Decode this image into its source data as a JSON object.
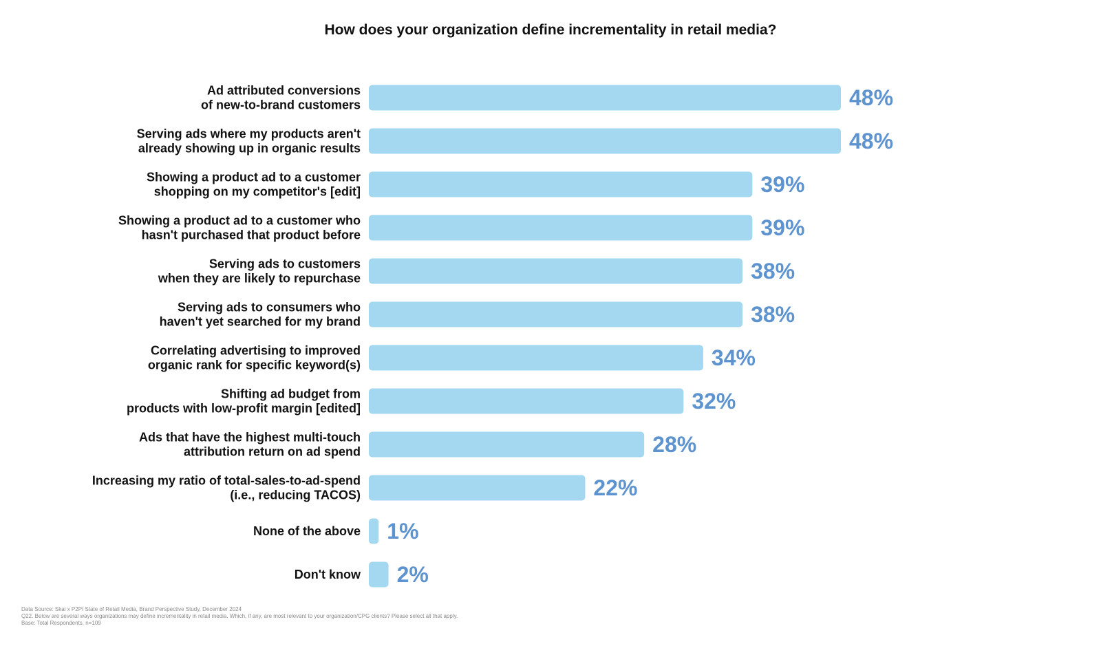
{
  "chart_data": {
    "type": "bar",
    "orientation": "horizontal",
    "title": "How does your organization define incrementality in retail media?",
    "categories": [
      [
        "Ad attributed conversions",
        "of new-to-brand customers"
      ],
      [
        "Serving ads where my products aren't",
        "already showing up in organic results"
      ],
      [
        "Showing a product ad to a customer",
        "shopping on my competitor's [edit]"
      ],
      [
        "Showing a product ad to a customer who",
        "hasn't purchased that product before"
      ],
      [
        "Serving ads to customers",
        "when they are likely to repurchase"
      ],
      [
        "Serving ads to consumers who",
        "haven't yet searched for my brand"
      ],
      [
        "Correlating advertising to improved",
        "organic rank for specific keyword(s)"
      ],
      [
        "Shifting ad budget from",
        "products with low-profit margin [edited]"
      ],
      [
        "Ads that have the highest multi-touch",
        "attribution return on ad spend"
      ],
      [
        "Increasing my ratio of total-sales-to-ad-spend",
        "(i.e., reducing TACOS)"
      ],
      [
        "None of the above"
      ],
      [
        "Don't know"
      ]
    ],
    "values": [
      48,
      48,
      39,
      39,
      38,
      38,
      34,
      32,
      28,
      22,
      1,
      2
    ],
    "value_labels": [
      "48%",
      "48%",
      "39%",
      "39%",
      "38%",
      "38%",
      "34%",
      "32%",
      "28%",
      "22%",
      "1%",
      "2%"
    ],
    "unit": "%",
    "xlim": [
      0,
      48
    ],
    "grid": false,
    "legend": "none",
    "bar_color": "#a3d8f0",
    "value_label_color": "#5d93cf"
  },
  "footnote": {
    "source": "Data Source: Skai x P2PI State of Retail Media, Brand Perspective Study, December 2024",
    "question": "Q22. Below are several ways organizations may define incrementality in retail media.  Which, if any, are most relevant to your organization/CPG clients? Please select all that apply.",
    "base": "Base:  Total Respondents, n=109"
  }
}
